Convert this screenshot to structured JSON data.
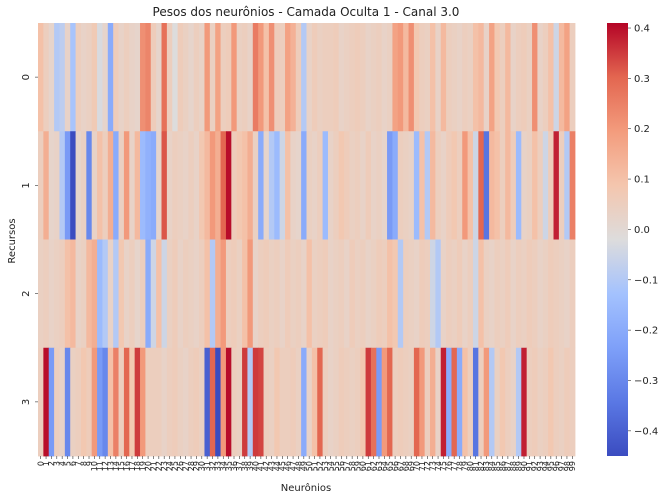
{
  "chart_data": {
    "type": "heatmap",
    "title": "Pesos dos neurônios - Camada Oculta 1 - Canal 3.0",
    "xlabel": "Neurônios",
    "ylabel": "Recursos",
    "x_ticks": [
      "0",
      "1",
      "2",
      "3",
      "4",
      "5",
      "6",
      "7",
      "8",
      "9",
      "10",
      "11",
      "12",
      "13",
      "14",
      "15",
      "16",
      "17",
      "18",
      "19",
      "20",
      "21",
      "22",
      "23",
      "24",
      "25",
      "26",
      "27",
      "28",
      "29",
      "30",
      "31",
      "32",
      "33",
      "34",
      "35",
      "36",
      "37",
      "38",
      "39",
      "40",
      "41",
      "42",
      "43",
      "44",
      "45",
      "46",
      "47",
      "48",
      "49",
      "50",
      "51",
      "52",
      "53",
      "54",
      "55",
      "56",
      "57",
      "58",
      "59",
      "60",
      "61",
      "62",
      "63",
      "64",
      "65",
      "66",
      "67",
      "68",
      "69",
      "70",
      "71",
      "72",
      "73",
      "74",
      "75",
      "76",
      "77",
      "78",
      "79",
      "80",
      "81",
      "82",
      "83",
      "84",
      "85",
      "86",
      "87",
      "88",
      "89",
      "90",
      "91",
      "92",
      "93",
      "94",
      "95",
      "96",
      "97",
      "98",
      "99"
    ],
    "y_ticks": [
      "0",
      "1",
      "2",
      "3"
    ],
    "colormap": "coolwarm",
    "vmin": -0.45,
    "vmax": 0.41,
    "colorbar_ticks": [
      0.4,
      0.3,
      0.2,
      0.1,
      0.0,
      -0.1,
      -0.2,
      -0.3,
      -0.4
    ],
    "colorbar_tick_labels": [
      "0.4",
      "0.3",
      "0.2",
      "0.1",
      "0.0",
      "−0.1",
      "−0.2",
      "−0.3",
      "−0.4"
    ],
    "values": [
      [
        0.1,
        0.05,
        0.02,
        -0.1,
        -0.08,
        0.03,
        -0.12,
        0.05,
        0.03,
        0.04,
        0.07,
        -0.03,
        0.02,
        -0.2,
        0.06,
        0.03,
        0.05,
        0.03,
        0.02,
        0.22,
        0.24,
        0.06,
        0.02,
        0.28,
        0.05,
        -0.02,
        0.06,
        0.04,
        0.02,
        0.05,
        0.03,
        0.2,
        0.04,
        0.18,
        0.05,
        0.06,
        0.2,
        0.04,
        0.05,
        0.03,
        0.26,
        0.2,
        0.1,
        0.22,
        0.06,
        0.05,
        0.18,
        0.14,
        0.06,
        -0.1,
        0.03,
        0.06,
        0.04,
        0.05,
        0.05,
        0.06,
        0.03,
        0.04,
        0.05,
        0.06,
        0.05,
        0.03,
        0.04,
        0.05,
        0.03,
        0.04,
        0.18,
        0.2,
        0.12,
        0.22,
        0.08,
        0.05,
        0.04,
        0.1,
        0.03,
        0.12,
        0.05,
        0.04,
        0.03,
        0.05,
        0.04,
        0.1,
        0.12,
        0.03,
        0.18,
        0.08,
        0.05,
        0.12,
        0.03,
        0.05,
        0.06,
        0.04,
        0.22,
        0.03,
        0.05,
        0.1,
        -0.05,
        0.12,
        0.18,
        0.05
      ],
      [
        0.05,
        0.15,
        0.02,
        0.03,
        -0.1,
        -0.25,
        -0.45,
        0.02,
        0.04,
        -0.3,
        0.03,
        0.1,
        0.05,
        0.15,
        -0.2,
        0.04,
        0.2,
        0.03,
        0.12,
        -0.15,
        -0.18,
        -0.2,
        0.02,
        0.32,
        0.03,
        0.05,
        0.04,
        0.03,
        0.05,
        0.03,
        0.08,
        0.12,
        0.2,
        0.15,
        0.3,
        0.4,
        0.06,
        0.08,
        0.1,
        0.15,
        0.04,
        -0.2,
        0.02,
        -0.1,
        -0.15,
        -0.05,
        0.1,
        0.03,
        0.02,
        -0.2,
        0.04,
        0.03,
        0.05,
        -0.15,
        0.03,
        0.05,
        0.08,
        0.06,
        0.04,
        0.05,
        0.03,
        0.06,
        0.03,
        0.04,
        0.02,
        -0.25,
        -0.2,
        0.05,
        0.04,
        0.03,
        -0.15,
        0.1,
        -0.1,
        0.12,
        0.05,
        0.03,
        0.06,
        0.08,
        0.05,
        0.2,
        0.1,
        -0.05,
        0.3,
        -0.35,
        0.12,
        0.1,
        0.05,
        0.12,
        0.06,
        -0.15,
        0.03,
        0.04,
        0.1,
        0.05,
        -0.05,
        0.06,
        0.38,
        0.05,
        -0.1,
        0.25
      ],
      [
        0.04,
        0.05,
        0.03,
        0.04,
        0.05,
        0.1,
        0.12,
        0.03,
        0.04,
        0.12,
        0.15,
        -0.15,
        -0.1,
        0.03,
        -0.1,
        0.08,
        0.03,
        0.05,
        0.02,
        0.05,
        -0.2,
        -0.05,
        0.1,
        -0.05,
        0.04,
        0.06,
        0.03,
        0.05,
        0.04,
        0.03,
        0.05,
        0.1,
        -0.1,
        0.15,
        0.2,
        0.05,
        0.06,
        0.04,
        0.1,
        0.2,
        0.03,
        0.05,
        0.06,
        0.04,
        0.05,
        0.03,
        0.06,
        0.04,
        0.05,
        0.03,
        0.1,
        0.04,
        0.05,
        0.06,
        0.03,
        0.04,
        0.05,
        0.03,
        0.06,
        0.04,
        0.05,
        0.03,
        0.04,
        0.06,
        0.05,
        0.1,
        0.08,
        -0.1,
        0.05,
        0.04,
        0.03,
        0.06,
        0.05,
        -0.05,
        -0.1,
        0.03,
        0.05,
        0.04,
        0.06,
        0.03,
        0.05,
        -0.05,
        0.1,
        0.04,
        0.03,
        0.05,
        0.04,
        0.06,
        0.03,
        0.05,
        0.04,
        0.06,
        0.05,
        0.03,
        0.04,
        0.06,
        0.05,
        0.04,
        0.03,
        0.05
      ],
      [
        0.05,
        0.4,
        -0.25,
        0.05,
        0.03,
        -0.3,
        0.04,
        0.05,
        0.08,
        0.06,
        0.2,
        -0.25,
        -0.3,
        0.1,
        0.25,
        0.05,
        0.3,
        0.08,
        0.35,
        0.2,
        0.05,
        0.05,
        0.05,
        0.03,
        0.05,
        0.06,
        0.04,
        0.03,
        0.05,
        0.06,
        0.04,
        -0.4,
        0.3,
        -0.45,
        0.2,
        0.4,
        0.05,
        0.04,
        0.35,
        -0.1,
        0.35,
        0.34,
        0.05,
        0.04,
        0.08,
        0.05,
        0.05,
        0.06,
        0.04,
        -0.2,
        0.03,
        0.1,
        0.3,
        0.05,
        0.03,
        0.04,
        0.06,
        0.05,
        0.04,
        0.05,
        0.08,
        0.35,
        0.28,
        -0.25,
        0.2,
        0.3,
        0.05,
        0.06,
        0.05,
        0.04,
        0.3,
        0.2,
        0.05,
        0.15,
        0.03,
        0.38,
        -0.2,
        0.3,
        -0.2,
        0.1,
        0.05,
        -0.35,
        0.05,
        0.2,
        -0.1,
        0.04,
        0.08,
        0.05,
        0.03,
        -0.1,
        0.38,
        0.05,
        0.06,
        0.04,
        0.05,
        0.08,
        0.05,
        0.04,
        0.06,
        0.05
      ]
    ]
  }
}
